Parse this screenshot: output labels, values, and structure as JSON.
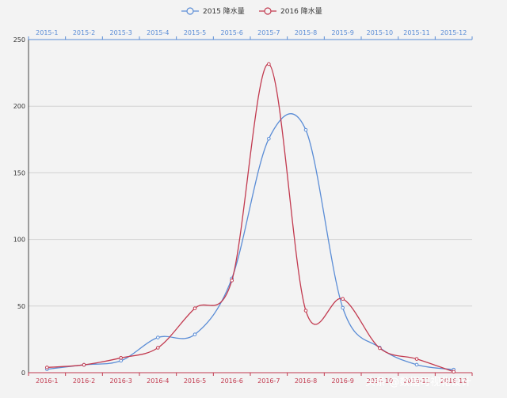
{
  "chart_data": {
    "type": "line",
    "smooth": true,
    "grid": true,
    "legend_position": "top-center",
    "ylim": [
      0,
      250
    ],
    "yticks": [
      0,
      50,
      100,
      150,
      200,
      250
    ],
    "series": [
      {
        "name": "2015 降水量",
        "axis": "top",
        "color": "#5b8dd6",
        "categories": [
          "2015-1",
          "2015-2",
          "2015-3",
          "2015-4",
          "2015-5",
          "2015-6",
          "2015-7",
          "2015-8",
          "2015-9",
          "2015-10",
          "2015-11",
          "2015-12"
        ],
        "values": [
          2.6,
          5.9,
          9.0,
          26.4,
          28.7,
          70.7,
          175.6,
          182.2,
          48.7,
          18.8,
          6.0,
          2.3
        ]
      },
      {
        "name": "2016 降水量",
        "axis": "bottom",
        "color": "#c23a4f",
        "categories": [
          "2016-1",
          "2016-2",
          "2016-3",
          "2016-4",
          "2016-5",
          "2016-6",
          "2016-7",
          "2016-8",
          "2016-9",
          "2016-10",
          "2016-11",
          "2016-12"
        ],
        "values": [
          3.9,
          5.9,
          11.1,
          18.7,
          48.3,
          69.2,
          231.6,
          46.6,
          55.4,
          18.4,
          10.3,
          0.7
        ]
      }
    ]
  },
  "watermark": "头条 @数据可视化设计"
}
